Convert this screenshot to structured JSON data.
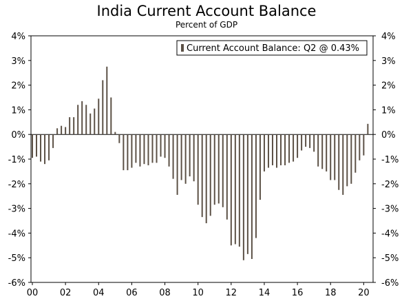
{
  "chart_data": {
    "type": "bar",
    "title": "India Current Account Balance",
    "subtitle": "Percent of GDP",
    "ylim": [
      -6,
      4
    ],
    "yticks": [
      "4%",
      "3%",
      "2%",
      "1%",
      "0%",
      "-1%",
      "-2%",
      "-3%",
      "-4%",
      "-5%",
      "-6%"
    ],
    "yticks_right": [
      "4%",
      "3%",
      "2%",
      "1%",
      "0%",
      "-1%",
      "-2%",
      "-3%",
      "-4%",
      "-5%",
      "-6%"
    ],
    "xticks": [
      "00",
      "02",
      "04",
      "06",
      "08",
      "10",
      "12",
      "14",
      "16",
      "18",
      "20"
    ],
    "grid": false,
    "legend": {
      "position": "top-right",
      "entries": [
        "Current Account Balance: Q2 @ 0.43%"
      ]
    },
    "colors": {
      "bar": "#5b5045"
    },
    "series": [
      {
        "name": "Current Account Balance: Q2 @ 0.43%",
        "x": [
          "2000 Q1",
          "2000 Q2",
          "2000 Q3",
          "2000 Q4",
          "2001 Q1",
          "2001 Q2",
          "2001 Q3",
          "2001 Q4",
          "2002 Q1",
          "2002 Q2",
          "2002 Q3",
          "2002 Q4",
          "2003 Q1",
          "2003 Q2",
          "2003 Q3",
          "2003 Q4",
          "2004 Q1",
          "2004 Q2",
          "2004 Q3",
          "2004 Q4",
          "2005 Q1",
          "2005 Q2",
          "2005 Q3",
          "2005 Q4",
          "2006 Q1",
          "2006 Q2",
          "2006 Q3",
          "2006 Q4",
          "2007 Q1",
          "2007 Q2",
          "2007 Q3",
          "2007 Q4",
          "2008 Q1",
          "2008 Q2",
          "2008 Q3",
          "2008 Q4",
          "2009 Q1",
          "2009 Q2",
          "2009 Q3",
          "2009 Q4",
          "2010 Q1",
          "2010 Q2",
          "2010 Q3",
          "2010 Q4",
          "2011 Q1",
          "2011 Q2",
          "2011 Q3",
          "2011 Q4",
          "2012 Q1",
          "2012 Q2",
          "2012 Q3",
          "2012 Q4",
          "2013 Q1",
          "2013 Q2",
          "2013 Q3",
          "2013 Q4",
          "2014 Q1",
          "2014 Q2",
          "2014 Q3",
          "2014 Q4",
          "2015 Q1",
          "2015 Q2",
          "2015 Q3",
          "2015 Q4",
          "2016 Q1",
          "2016 Q2",
          "2016 Q3",
          "2016 Q4",
          "2017 Q1",
          "2017 Q2",
          "2017 Q3",
          "2017 Q4",
          "2018 Q1",
          "2018 Q2",
          "2018 Q3",
          "2018 Q4",
          "2019 Q1",
          "2019 Q2",
          "2019 Q3",
          "2019 Q4",
          "2020 Q1",
          "2020 Q2"
        ],
        "values": [
          -0.95,
          -0.9,
          -1.1,
          -1.2,
          -1.05,
          -0.55,
          0.25,
          0.35,
          0.3,
          0.7,
          0.7,
          1.2,
          1.35,
          1.2,
          0.85,
          1.05,
          1.45,
          2.2,
          2.75,
          1.5,
          0.1,
          -0.35,
          -1.45,
          -1.45,
          -1.35,
          -1.15,
          -1.3,
          -1.2,
          -1.25,
          -1.15,
          -1.15,
          -0.9,
          -0.95,
          -1.3,
          -1.8,
          -2.45,
          -1.85,
          -2.0,
          -1.7,
          -1.9,
          -2.85,
          -3.35,
          -3.6,
          -3.3,
          -2.85,
          -2.8,
          -2.95,
          -3.45,
          -4.5,
          -4.45,
          -4.55,
          -5.1,
          -4.85,
          -5.05,
          -4.2,
          -2.65,
          -1.5,
          -1.35,
          -1.25,
          -1.35,
          -1.25,
          -1.25,
          -1.15,
          -1.1,
          -0.95,
          -0.65,
          -0.5,
          -0.55,
          -0.7,
          -1.3,
          -1.4,
          -1.5,
          -1.85,
          -1.85,
          -2.25,
          -2.45,
          -2.1,
          -2.0,
          -1.55,
          -1.05,
          -0.85,
          0.43
        ]
      }
    ]
  }
}
